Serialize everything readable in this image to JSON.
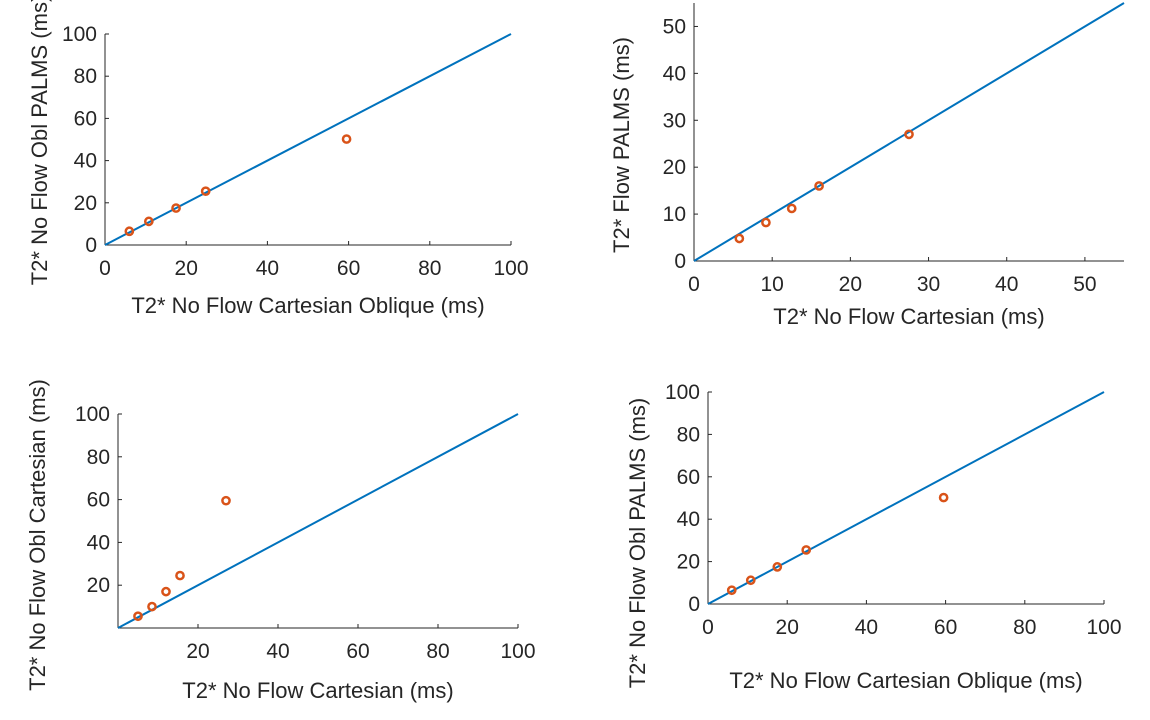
{
  "colors": {
    "line": "#0072BD",
    "points": "#D95319",
    "axis": "#262626",
    "background": "#ffffff"
  },
  "chart_data": [
    {
      "type": "scatter",
      "panel": "top-left",
      "xlabel": "T2* No Flow Cartesian Oblique (ms)",
      "ylabel": "T2* No Flow Obl PALMS (ms)",
      "xlim": [
        0,
        100
      ],
      "ylim": [
        0,
        100
      ],
      "xticks": [
        0,
        20,
        40,
        60,
        80,
        100
      ],
      "yticks": [
        0,
        20,
        40,
        60,
        80,
        100
      ],
      "xtick_labels": [
        "0",
        "20",
        "40",
        "60",
        "80",
        "100"
      ],
      "ytick_labels": [
        "0",
        "20",
        "40",
        "60",
        "80",
        "100"
      ],
      "reference_line": {
        "name": "identity",
        "x": [
          0,
          100
        ],
        "y": [
          0,
          100
        ]
      },
      "points": {
        "x": [
          6,
          10.8,
          17.5,
          24.8,
          59.5
        ],
        "y": [
          6.5,
          11.2,
          17.5,
          25.5,
          50.2
        ]
      }
    },
    {
      "type": "scatter",
      "panel": "top-right",
      "xlabel": "T2* No Flow Cartesian (ms)",
      "ylabel": "T2* Flow PALMS (ms)",
      "xlim": [
        0,
        55
      ],
      "ylim": [
        0,
        55
      ],
      "xticks": [
        0,
        10,
        20,
        30,
        40,
        50
      ],
      "yticks": [
        0,
        10,
        20,
        30,
        40,
        50
      ],
      "xtick_labels": [
        "0",
        "10",
        "20",
        "30",
        "40",
        "50"
      ],
      "ytick_labels": [
        "0",
        "10",
        "20",
        "30",
        "40",
        "50"
      ],
      "reference_line": {
        "name": "identity",
        "x": [
          0,
          55
        ],
        "y": [
          0,
          55
        ]
      },
      "points": {
        "x": [
          5.8,
          9.2,
          12.5,
          16,
          27.5
        ],
        "y": [
          4.8,
          8.2,
          11.2,
          16,
          27
        ]
      }
    },
    {
      "type": "scatter",
      "panel": "bottom-left",
      "xlabel": "T2* No Flow Cartesian (ms)",
      "ylabel": "T2* No Flow Obl Cartesian (ms)",
      "xlim": [
        0,
        100
      ],
      "ylim": [
        0,
        100
      ],
      "xticks": [
        20,
        40,
        60,
        80,
        100
      ],
      "yticks": [
        20,
        40,
        60,
        80,
        100
      ],
      "xtick_labels": [
        "20",
        "40",
        "60",
        "80",
        "100"
      ],
      "ytick_labels": [
        "20",
        "40",
        "60",
        "80",
        "100"
      ],
      "reference_line": {
        "name": "identity",
        "x": [
          0,
          100
        ],
        "y": [
          0,
          100
        ]
      },
      "points": {
        "x": [
          5,
          8.5,
          12,
          15.5,
          27
        ],
        "y": [
          5.5,
          10,
          17,
          24.5,
          59.5
        ]
      }
    },
    {
      "type": "scatter",
      "panel": "bottom-right",
      "xlabel": "T2* No Flow Cartesian Oblique (ms)",
      "ylabel": "T2* No Flow Obl PALMS (ms)",
      "xlim": [
        0,
        100
      ],
      "ylim": [
        0,
        100
      ],
      "xticks": [
        0,
        20,
        40,
        60,
        80,
        100
      ],
      "yticks": [
        0,
        20,
        40,
        60,
        80,
        100
      ],
      "xtick_labels": [
        "0",
        "20",
        "40",
        "60",
        "80",
        "100"
      ],
      "ytick_labels": [
        "0",
        "20",
        "40",
        "60",
        "80",
        "100"
      ],
      "reference_line": {
        "name": "identity",
        "x": [
          0,
          100
        ],
        "y": [
          0,
          100
        ]
      },
      "points": {
        "x": [
          6,
          10.8,
          17.5,
          24.8,
          59.5
        ],
        "y": [
          6.5,
          11.2,
          17.5,
          25.5,
          50.2
        ]
      }
    }
  ]
}
